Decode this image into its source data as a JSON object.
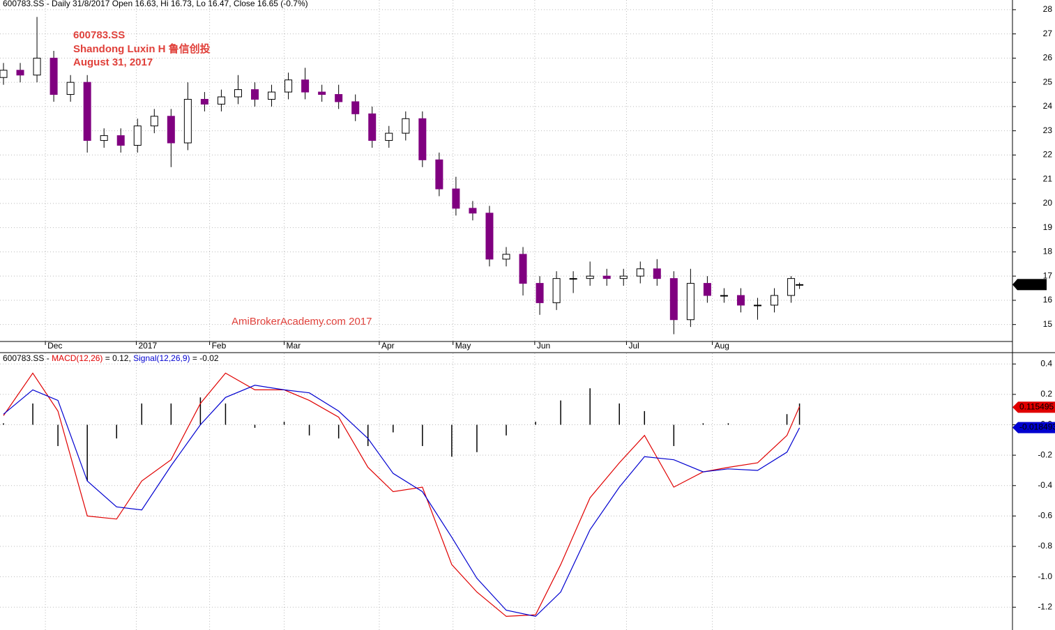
{
  "chart_data": [
    {
      "type": "candlestick",
      "title": "600783.SS - Daily 31/8/2017 Open 16.63, Hi 16.73, Lo 16.47, Close 16.65 (-0.7%)",
      "annotations": [
        "600783.SS",
        "Shandong Luxin H 鲁信创投",
        "August 31, 2017",
        "AmiBrokerAcademy.com  2017"
      ],
      "x": [
        0,
        4,
        8,
        12,
        16,
        20,
        24,
        28,
        32,
        36,
        40,
        44,
        48,
        52,
        56,
        60,
        64,
        68,
        72,
        76,
        80,
        84,
        88,
        92,
        96,
        100,
        104,
        108,
        112,
        116,
        120,
        124,
        128,
        132,
        136,
        140,
        144,
        148,
        152,
        156,
        160,
        164,
        168,
        172,
        176,
        180,
        184,
        188,
        190
      ],
      "open": [
        25.2,
        25.5,
        25.3,
        26.0,
        24.5,
        25.0,
        22.6,
        22.8,
        22.4,
        23.2,
        23.6,
        22.5,
        24.3,
        24.1,
        24.4,
        24.7,
        24.3,
        24.6,
        25.1,
        24.6,
        24.5,
        24.2,
        23.7,
        22.6,
        22.9,
        23.5,
        21.8,
        20.6,
        19.8,
        19.6,
        17.7,
        17.9,
        16.7,
        15.9,
        16.9,
        16.9,
        17.0,
        16.9,
        17.0,
        17.3,
        16.9,
        15.2,
        16.7,
        16.2,
        16.2,
        15.8,
        15.8,
        16.2,
        16.63
      ],
      "high": [
        25.8,
        25.8,
        27.7,
        26.3,
        25.3,
        25.3,
        23.1,
        23.1,
        23.5,
        23.9,
        23.9,
        25.0,
        24.6,
        24.7,
        25.3,
        25.0,
        24.9,
        25.4,
        25.6,
        24.9,
        24.9,
        24.5,
        24.0,
        23.2,
        23.8,
        23.8,
        22.1,
        21.1,
        20.1,
        19.9,
        18.2,
        18.2,
        17.0,
        17.2,
        17.2,
        17.6,
        17.3,
        17.3,
        17.6,
        17.7,
        17.2,
        17.3,
        17.0,
        16.5,
        16.5,
        16.1,
        16.5,
        17.0,
        16.73
      ],
      "low": [
        24.9,
        25.0,
        25.0,
        24.2,
        24.2,
        22.1,
        22.3,
        22.1,
        22.1,
        22.9,
        21.5,
        22.2,
        23.8,
        23.8,
        24.1,
        24.0,
        24.0,
        24.3,
        24.3,
        24.2,
        23.9,
        23.4,
        22.3,
        22.3,
        22.6,
        21.5,
        20.3,
        19.5,
        19.3,
        17.4,
        17.4,
        16.2,
        15.4,
        15.6,
        16.3,
        16.6,
        16.6,
        16.6,
        16.7,
        16.6,
        14.6,
        14.9,
        15.9,
        15.9,
        15.5,
        15.2,
        15.5,
        15.9,
        16.47
      ],
      "close": [
        25.5,
        25.3,
        26.0,
        24.5,
        25.0,
        22.6,
        22.8,
        22.4,
        23.2,
        23.6,
        22.5,
        24.3,
        24.1,
        24.4,
        24.7,
        24.3,
        24.6,
        25.1,
        24.6,
        24.5,
        24.2,
        23.7,
        22.6,
        22.9,
        23.5,
        21.8,
        20.6,
        19.8,
        19.6,
        17.7,
        17.9,
        16.7,
        15.9,
        16.9,
        16.9,
        17.0,
        16.9,
        17.0,
        17.3,
        16.9,
        15.2,
        16.7,
        16.2,
        16.2,
        15.8,
        15.8,
        16.2,
        16.9,
        16.65
      ],
      "up_color": "#ffffff",
      "down_color": "#800080",
      "xlim": [
        -0.83,
        240.83
      ],
      "xticks": [
        {
          "value": 10,
          "label": "Dec"
        },
        {
          "value": 31.7,
          "label": "2017"
        },
        {
          "value": 49.2,
          "label": "Feb"
        },
        {
          "value": 67,
          "label": "Mar"
        },
        {
          "value": 89.7,
          "label": "Apr"
        },
        {
          "value": 107.3,
          "label": "May"
        },
        {
          "value": 126.8,
          "label": "Jun"
        },
        {
          "value": 148.7,
          "label": "Jul"
        },
        {
          "value": 169.2,
          "label": "Aug"
        }
      ],
      "ylim": [
        14.3,
        28.4
      ],
      "yticks": [
        15,
        16,
        17,
        18,
        19,
        20,
        21,
        22,
        23,
        24,
        25,
        26,
        27,
        28
      ],
      "grid": true
    },
    {
      "type": "line",
      "title": "600783.SS - ",
      "x": [
        0,
        7,
        13,
        20,
        27,
        33,
        40,
        47,
        53,
        60,
        67,
        73,
        80,
        87,
        93,
        100,
        107,
        113,
        120,
        127,
        133,
        140,
        147,
        153,
        160,
        167,
        173,
        180,
        187,
        190
      ],
      "series": [
        {
          "name": "MACD(12,26)",
          "legend_text": " = 0.12, ",
          "color": "#e00000",
          "last": 0.115495,
          "values": [
            0.06,
            0.34,
            0.09,
            -0.6,
            -0.62,
            -0.37,
            -0.23,
            0.14,
            0.34,
            0.23,
            0.23,
            0.16,
            0.05,
            -0.28,
            -0.44,
            -0.41,
            -0.92,
            -1.1,
            -1.26,
            -1.25,
            -0.92,
            -0.48,
            -0.25,
            -0.07,
            -0.41,
            -0.31,
            -0.28,
            -0.25,
            -0.07,
            0.12
          ]
        },
        {
          "name": "Signal(12,26,9)",
          "legend_text": " = -0.02",
          "color": "#0000d0",
          "last": -0.018493,
          "values": [
            0.07,
            0.23,
            0.16,
            -0.37,
            -0.54,
            -0.56,
            -0.27,
            0.0,
            0.18,
            0.26,
            0.23,
            0.21,
            0.09,
            -0.09,
            -0.32,
            -0.44,
            -0.74,
            -1.01,
            -1.22,
            -1.26,
            -1.1,
            -0.69,
            -0.41,
            -0.21,
            -0.23,
            -0.31,
            -0.29,
            -0.3,
            -0.18,
            -0.02
          ]
        }
      ],
      "histogram": {
        "color": "#000000",
        "values": [
          0.01,
          0.14,
          -0.14,
          -0.37,
          -0.09,
          0.14,
          0.14,
          0.18,
          0.14,
          -0.02,
          0.02,
          -0.07,
          -0.09,
          -0.14,
          -0.05,
          -0.14,
          -0.21,
          -0.18,
          -0.07,
          0.02,
          0.16,
          0.24,
          0.14,
          0.09,
          -0.14,
          0.01,
          0.01,
          0.0,
          0.07,
          0.14
        ]
      },
      "ylim": [
        -1.35,
        0.47
      ],
      "yticks": [
        0.4,
        0.2,
        {
          "value": 0,
          "label": "0.0"
        },
        -0.2,
        -0.4,
        -0.6,
        -0.8,
        {
          "value": -1,
          "label": "-1.0"
        },
        -1.2
      ],
      "grid": true
    }
  ]
}
